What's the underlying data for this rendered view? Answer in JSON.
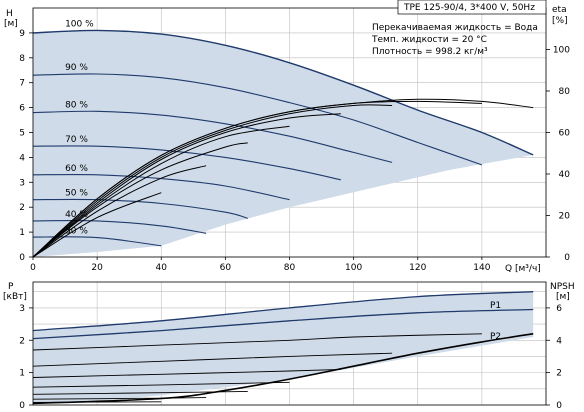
{
  "chart_data": [
    {
      "type": "line",
      "title": "TPE 125-90/4, 3*400 V, 50Hz",
      "ylabel": "H",
      "yunit": "[м]",
      "ylabel_right": "eta",
      "yunit_right": "[%]",
      "xlabel": "Q",
      "xunit": "[м³/ч]",
      "xlim": [
        0,
        160
      ],
      "ylim": [
        0,
        10
      ],
      "ylim_right": [
        0,
        120
      ],
      "xticks": [
        "0",
        "20",
        "40",
        "60",
        "80",
        "100",
        "120",
        "140"
      ],
      "yticks": [
        "0",
        "1",
        "2",
        "3",
        "4",
        "5",
        "6",
        "7",
        "8",
        "9"
      ],
      "yticks_right": [
        "0",
        "20",
        "40",
        "60",
        "80",
        "100"
      ],
      "info": [
        "Перекачиваемая жидкость = Вода",
        "Темп. жидкости = 20 °C",
        "Плотность = 998.2 кг/м³"
      ],
      "speed_labels": [
        "100 %",
        "90 %",
        "80 %",
        "70 %",
        "60 %",
        "50 %",
        "40 %",
        "30 %"
      ],
      "head_curves": [
        {
          "label": "100 %",
          "points": [
            [
              0,
              9.0
            ],
            [
              20,
              9.1
            ],
            [
              40,
              8.95
            ],
            [
              60,
              8.5
            ],
            [
              80,
              7.8
            ],
            [
              100,
              6.9
            ],
            [
              120,
              5.9
            ],
            [
              140,
              5.0
            ],
            [
              156,
              4.1
            ]
          ]
        },
        {
          "label": "90 %",
          "points": [
            [
              0,
              7.3
            ],
            [
              20,
              7.35
            ],
            [
              40,
              7.2
            ],
            [
              60,
              6.8
            ],
            [
              80,
              6.2
            ],
            [
              100,
              5.5
            ],
            [
              120,
              4.6
            ],
            [
              140,
              3.7
            ]
          ]
        },
        {
          "label": "80 %",
          "points": [
            [
              0,
              5.8
            ],
            [
              20,
              5.85
            ],
            [
              40,
              5.7
            ],
            [
              60,
              5.35
            ],
            [
              80,
              4.85
            ],
            [
              100,
              4.2
            ],
            [
              112,
              3.8
            ]
          ]
        },
        {
          "label": "70 %",
          "points": [
            [
              0,
              4.45
            ],
            [
              20,
              4.45
            ],
            [
              40,
              4.3
            ],
            [
              60,
              4.0
            ],
            [
              80,
              3.55
            ],
            [
              96,
              3.1
            ]
          ]
        },
        {
          "label": "60 %",
          "points": [
            [
              0,
              3.3
            ],
            [
              20,
              3.3
            ],
            [
              40,
              3.15
            ],
            [
              60,
              2.85
            ],
            [
              80,
              2.3
            ]
          ]
        },
        {
          "label": "50 %",
          "points": [
            [
              0,
              2.3
            ],
            [
              20,
              2.3
            ],
            [
              40,
              2.15
            ],
            [
              60,
              1.8
            ],
            [
              67,
              1.55
            ]
          ]
        },
        {
          "label": "40 %",
          "points": [
            [
              0,
              1.45
            ],
            [
              20,
              1.45
            ],
            [
              40,
              1.25
            ],
            [
              54,
              0.95
            ]
          ]
        },
        {
          "label": "30 %",
          "points": [
            [
              0,
              0.8
            ],
            [
              20,
              0.78
            ],
            [
              40,
              0.45
            ]
          ]
        }
      ],
      "envelope_points": [
        [
          0,
          0
        ],
        [
          0,
          9.0
        ],
        [
          20,
          9.1
        ],
        [
          40,
          8.95
        ],
        [
          60,
          8.5
        ],
        [
          80,
          7.8
        ],
        [
          100,
          6.9
        ],
        [
          120,
          5.9
        ],
        [
          140,
          5.0
        ],
        [
          156,
          4.1
        ],
        [
          130,
          3.5
        ],
        [
          100,
          2.6
        ],
        [
          80,
          2.0
        ],
        [
          60,
          1.3
        ],
        [
          40,
          0.45
        ],
        [
          20,
          0.2
        ],
        [
          0,
          0
        ]
      ],
      "eta_curves": [
        {
          "label": "100 %",
          "points": [
            [
              0,
              0
            ],
            [
              20,
              28
            ],
            [
              40,
              49
            ],
            [
              60,
              62
            ],
            [
              80,
              70
            ],
            [
              100,
              74
            ],
            [
              120,
              76
            ],
            [
              140,
              75
            ],
            [
              156,
              72
            ]
          ]
        },
        {
          "label": "90 %",
          "points": [
            [
              0,
              0
            ],
            [
              20,
              28
            ],
            [
              40,
              49
            ],
            [
              60,
              62
            ],
            [
              80,
              70
            ],
            [
              100,
              74
            ],
            [
              120,
              75
            ],
            [
              140,
              74
            ]
          ]
        },
        {
          "label": "80 %",
          "points": [
            [
              0,
              0
            ],
            [
              20,
              27
            ],
            [
              40,
              48
            ],
            [
              60,
              61
            ],
            [
              80,
              69
            ],
            [
              100,
              73
            ],
            [
              112,
              73
            ]
          ]
        },
        {
          "label": "70 %",
          "points": [
            [
              0,
              0
            ],
            [
              20,
              26
            ],
            [
              40,
              47
            ],
            [
              60,
              60
            ],
            [
              80,
              67
            ],
            [
              96,
              69
            ]
          ]
        },
        {
          "label": "60 %",
          "points": [
            [
              0,
              0
            ],
            [
              20,
              25
            ],
            [
              40,
              45
            ],
            [
              60,
              58
            ],
            [
              80,
              63
            ]
          ]
        },
        {
          "label": "50 %",
          "points": [
            [
              0,
              0
            ],
            [
              20,
              24
            ],
            [
              40,
              42
            ],
            [
              60,
              53
            ],
            [
              67,
              55
            ]
          ]
        },
        {
          "label": "40 %",
          "points": [
            [
              0,
              0
            ],
            [
              20,
              22
            ],
            [
              40,
              38
            ],
            [
              54,
              44
            ]
          ]
        },
        {
          "label": "30 %",
          "points": [
            [
              0,
              0
            ],
            [
              20,
              19
            ],
            [
              40,
              31
            ]
          ]
        }
      ]
    },
    {
      "type": "line",
      "ylabel": "P",
      "yunit": "[кВт]",
      "ylabel_right": "NPSH",
      "yunit_right": "[м]",
      "xlim": [
        0,
        160
      ],
      "ylim": [
        0,
        3.8
      ],
      "ylim_right": [
        0,
        7.6
      ],
      "yticks": [
        "0",
        "1",
        "2",
        "3"
      ],
      "yticks_right": [
        "0",
        "2",
        "4",
        "6"
      ],
      "series_labels": [
        "P1",
        "P2"
      ],
      "power_envelope": [
        [
          0,
          2.3
        ],
        [
          40,
          2.6
        ],
        [
          80,
          3.0
        ],
        [
          120,
          3.35
        ],
        [
          156,
          3.5
        ],
        [
          156,
          2.1
        ],
        [
          120,
          1.5
        ],
        [
          80,
          0.8
        ],
        [
          40,
          0.3
        ],
        [
          20,
          0.1
        ],
        [
          0,
          0.05
        ]
      ],
      "power_curves": [
        {
          "label": "P1",
          "points": [
            [
              0,
              2.3
            ],
            [
              40,
              2.6
            ],
            [
              80,
              3.0
            ],
            [
              120,
              3.35
            ],
            [
              156,
              3.5
            ]
          ]
        },
        {
          "label": "P2",
          "points": [
            [
              0,
              2.05
            ],
            [
              40,
              2.3
            ],
            [
              80,
              2.6
            ],
            [
              120,
              2.85
            ],
            [
              156,
              2.95
            ]
          ]
        },
        {
          "label": "90 %",
          "points": [
            [
              0,
              1.7
            ],
            [
              40,
              1.85
            ],
            [
              80,
              2.0
            ],
            [
              100,
              2.1
            ],
            [
              140,
              2.2
            ]
          ]
        },
        {
          "label": "80 %",
          "points": [
            [
              0,
              1.2
            ],
            [
              40,
              1.35
            ],
            [
              80,
              1.5
            ],
            [
              112,
              1.6
            ]
          ]
        },
        {
          "label": "70 %",
          "points": [
            [
              0,
              0.85
            ],
            [
              40,
              0.95
            ],
            [
              80,
              1.05
            ],
            [
              96,
              1.1
            ]
          ]
        },
        {
          "label": "60 %",
          "points": [
            [
              0,
              0.55
            ],
            [
              40,
              0.62
            ],
            [
              80,
              0.7
            ]
          ]
        },
        {
          "label": "50 %",
          "points": [
            [
              0,
              0.33
            ],
            [
              40,
              0.38
            ],
            [
              67,
              0.42
            ]
          ]
        },
        {
          "label": "40 %",
          "points": [
            [
              0,
              0.18
            ],
            [
              40,
              0.21
            ],
            [
              54,
              0.23
            ]
          ]
        },
        {
          "label": "30 %",
          "points": [
            [
              0,
              0.08
            ],
            [
              40,
              0.1
            ]
          ]
        }
      ],
      "npsh_curve": {
        "label": "NPSH",
        "points": [
          [
            0,
            0.1
          ],
          [
            40,
            0.4
          ],
          [
            60,
            0.9
          ],
          [
            80,
            1.6
          ],
          [
            100,
            2.4
          ],
          [
            120,
            3.2
          ],
          [
            140,
            3.9
          ],
          [
            156,
            4.4
          ]
        ]
      }
    }
  ]
}
